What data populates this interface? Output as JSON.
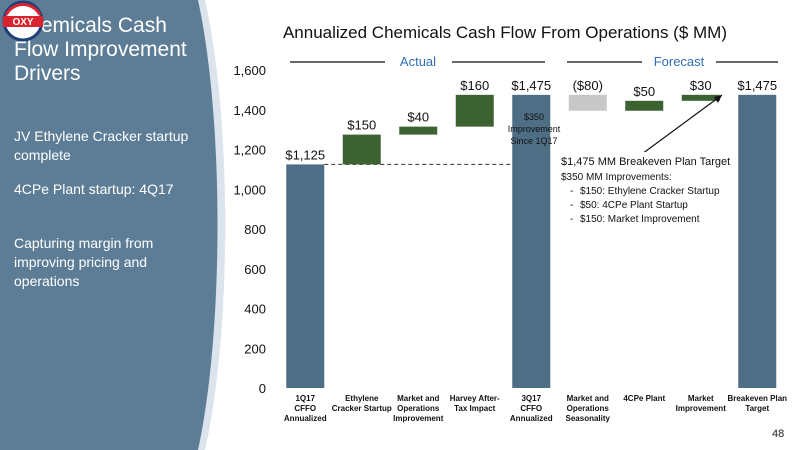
{
  "sidebar": {
    "title": "Chemicals Cash\nFlow Improvement\nDrivers",
    "bullets": [
      "JV Ethylene Cracker startup complete",
      "4CPe Plant startup: 4Q17",
      "Capturing margin from improving pricing and operations"
    ],
    "logo_text": "OXY"
  },
  "page_number": "48",
  "chart_data": {
    "type": "bar",
    "subtype": "waterfall",
    "title": "Annualized Chemicals Cash Flow From Operations ($ MM)",
    "ylim": [
      0,
      1600
    ],
    "yticks": [
      "0",
      "200",
      "400",
      "600",
      "800",
      "1,000",
      "1,200",
      "1,400",
      "1,600"
    ],
    "bars": [
      {
        "category": "1Q17 CFFO Annualized",
        "start": 0,
        "end": 1125,
        "label": "$1,125",
        "color": "#4e6e85"
      },
      {
        "category": "Ethylene Cracker Startup",
        "start": 1125,
        "end": 1275,
        "label": "$150",
        "color": "#3b6230"
      },
      {
        "category": "Market and Operations Improvement",
        "start": 1275,
        "end": 1315,
        "label": "$40",
        "color": "#3b6230"
      },
      {
        "category": "Harvey After-Tax Impact",
        "start": 1315,
        "end": 1475,
        "label": "$160",
        "color": "#3b6230"
      },
      {
        "category": "3Q17 CFFO Annualized",
        "start": 0,
        "end": 1475,
        "label": "$1,475",
        "color": "#4e6e85"
      },
      {
        "category": "Market and Operations Seasonality",
        "start": 1395,
        "end": 1475,
        "label": "($80)",
        "color": "#c8c8c8"
      },
      {
        "category": "4CPe Plant",
        "start": 1395,
        "end": 1445,
        "label": "$50",
        "color": "#3b6230"
      },
      {
        "category": "Market Improvement",
        "start": 1445,
        "end": 1475,
        "label": "$30",
        "color": "#3b6230"
      },
      {
        "category": "Breakeven Plan Target",
        "start": 0,
        "end": 1475,
        "label": "$1,475",
        "color": "#4e6e85"
      }
    ],
    "xlabels": [
      [
        "1Q17",
        "CFFO",
        "Annualized"
      ],
      [
        "Ethylene",
        "Cracker Startup"
      ],
      [
        "Market and",
        "Operations",
        "Improvement"
      ],
      [
        "Harvey After-",
        "Tax Impact"
      ],
      [
        "3Q17",
        "CFFO",
        "Annualized"
      ],
      [
        "Market and",
        "Operations",
        "Seasonality"
      ],
      [
        "4CPe Plant"
      ],
      [
        "Market",
        "Improvement"
      ],
      [
        "Breakeven Plan",
        "Target"
      ]
    ],
    "section_labels": {
      "actual": "Actual",
      "forecast": "Forecast"
    },
    "annotation_bar": [
      "$350",
      "Improvement",
      "Since 1Q17"
    ],
    "callout": {
      "title": "$1,475 MM Breakeven Plan Target",
      "subtitle": "$350 MM Improvements:",
      "items": [
        "$150: Ethylene Cracker Startup",
        "$50: 4CPe Plant Startup",
        "$150: Market Improvement"
      ]
    },
    "colors": {
      "sidebar": "#5d7d96",
      "axis_text": "#111111",
      "dashed_line": "#333333"
    }
  }
}
